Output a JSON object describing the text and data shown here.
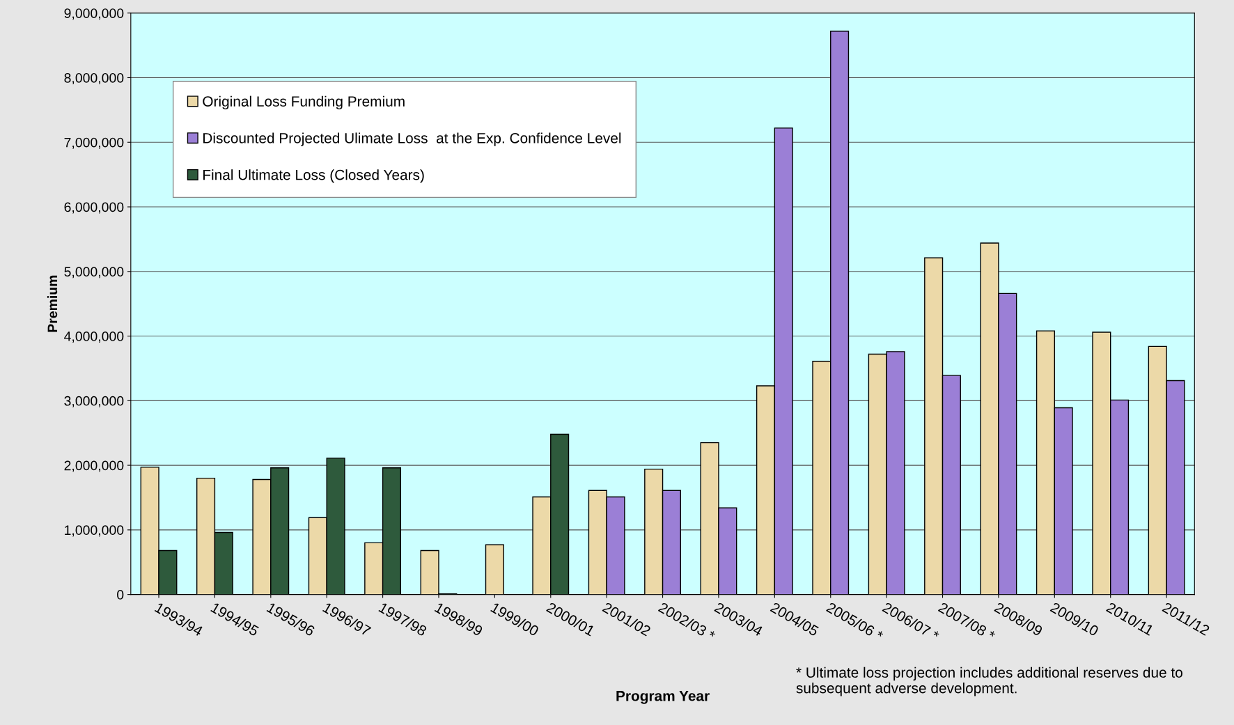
{
  "chart_data": {
    "type": "bar",
    "xlabel": "Program Year",
    "ylabel": "Premium",
    "categories": [
      "1993/94",
      "1994/95",
      "1995/96",
      "1996/97",
      "1997/98",
      "1998/99",
      "1999/00",
      "2000/01",
      "2001/02",
      "2002/03 *",
      "2003/04",
      "2004/05",
      "2005/06 *",
      "2006/07 *",
      "2007/08 *",
      "2008/09",
      "2009/10",
      "2010/11",
      "2011/12"
    ],
    "series": [
      {
        "name": "Original Loss Funding Premium",
        "color": "#ecd9a8",
        "values": [
          1970000,
          1800000,
          1780000,
          1190000,
          800000,
          680000,
          770000,
          1510000,
          1610000,
          1940000,
          2350000,
          3230000,
          3610000,
          3720000,
          5210000,
          5440000,
          4080000,
          4060000,
          3840000
        ]
      },
      {
        "name": "Discounted Projected Ulimate Loss  at the Exp. Confidence Level",
        "color": "#9b7fd6",
        "values": [
          null,
          null,
          null,
          null,
          null,
          null,
          null,
          null,
          1510000,
          1610000,
          1340000,
          7220000,
          8720000,
          3760000,
          3390000,
          4660000,
          2890000,
          3010000,
          3310000
        ]
      },
      {
        "name": "Final Ultimate Loss (Closed Years)",
        "color": "#2e5a3c",
        "values": [
          680000,
          960000,
          1960000,
          2110000,
          1960000,
          10000,
          null,
          2480000,
          null,
          null,
          null,
          null,
          null,
          null,
          null,
          null,
          null,
          null,
          null
        ]
      }
    ],
    "ylim": [
      0,
      9000000
    ],
    "yticks": [
      {
        "value": 0,
        "label": "0"
      },
      {
        "value": 1000000,
        "label": "1,000,000"
      },
      {
        "value": 2000000,
        "label": "2,000,000"
      },
      {
        "value": 3000000,
        "label": "3,000,000"
      },
      {
        "value": 4000000,
        "label": "4,000,000"
      },
      {
        "value": 5000000,
        "label": "5,000,000"
      },
      {
        "value": 6000000,
        "label": "6,000,000"
      },
      {
        "value": 7000000,
        "label": "7,000,000"
      },
      {
        "value": 8000000,
        "label": "8,000,000"
      },
      {
        "value": 9000000,
        "label": "9,000,000"
      }
    ],
    "grid": "y",
    "legend": "top left",
    "annotations": [
      "* Ultimate loss projection includes additional reserves due to subsequent adverse development."
    ]
  }
}
